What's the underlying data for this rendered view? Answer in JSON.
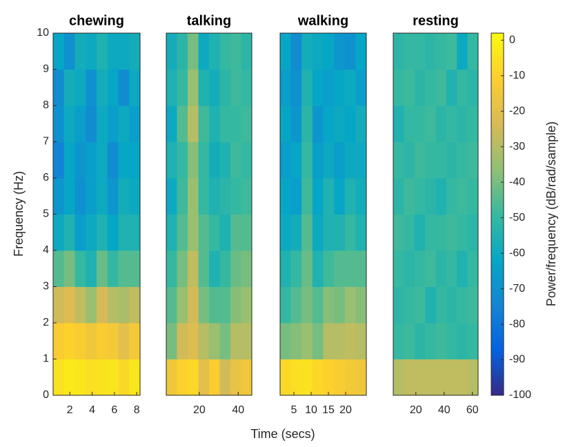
{
  "chart_data": {
    "type": "heatmap",
    "xlabel": "Time (secs)",
    "ylabel": "Frequency  (Hz)",
    "ylim": [
      0,
      10
    ],
    "yticks": [
      0,
      1,
      2,
      3,
      4,
      5,
      6,
      7,
      8,
      9,
      10
    ],
    "colormap": [
      "#352a87",
      "#0363e1",
      "#1485d4",
      "#06a7c6",
      "#38b99e",
      "#92bf73",
      "#d9ba56",
      "#fcce2e",
      "#f9fb0e"
    ],
    "colorbar": {
      "label": "Power/frequency (dB/rad/sample)",
      "zlim": [
        -100,
        2
      ],
      "ticks": [
        0,
        -10,
        -20,
        -30,
        -40,
        -50,
        -60,
        -70,
        -80,
        -90,
        -100
      ]
    },
    "panels": [
      {
        "title": "chewing",
        "xlim": [
          0.5,
          8.3
        ],
        "xticks": [
          2,
          4,
          6,
          8
        ],
        "values": [
          [
            -5,
            -3,
            -4,
            -6,
            -5,
            -4,
            -8,
            -4
          ],
          [
            -12,
            -10,
            -12,
            -15,
            -12,
            -14,
            -20,
            -14
          ],
          [
            -25,
            -22,
            -28,
            -35,
            -24,
            -30,
            -32,
            -28
          ],
          [
            -45,
            -40,
            -50,
            -55,
            -42,
            -50,
            -45,
            -45
          ],
          [
            -60,
            -55,
            -65,
            -60,
            -55,
            -62,
            -55,
            -55
          ],
          [
            -68,
            -62,
            -70,
            -65,
            -60,
            -68,
            -58,
            -60
          ],
          [
            -75,
            -62,
            -68,
            -65,
            -60,
            -72,
            -62,
            -62
          ],
          [
            -70,
            -60,
            -65,
            -72,
            -60,
            -65,
            -60,
            -65
          ],
          [
            -72,
            -58,
            -60,
            -70,
            -58,
            -62,
            -72,
            -60
          ],
          [
            -62,
            -70,
            -58,
            -60,
            -55,
            -60,
            -60,
            -58
          ]
        ]
      },
      {
        "title": "talking",
        "xlim": [
          3,
          47
        ],
        "xticks": [
          20,
          40
        ],
        "values": [
          [
            -15,
            -10,
            -8,
            -20,
            -12,
            -25,
            -18,
            -15
          ],
          [
            -40,
            -25,
            -22,
            -30,
            -35,
            -40,
            -30,
            -30
          ],
          [
            -45,
            -35,
            -25,
            -40,
            -45,
            -45,
            -38,
            -35
          ],
          [
            -50,
            -40,
            -28,
            -45,
            -55,
            -50,
            -42,
            -40
          ],
          [
            -55,
            -45,
            -35,
            -45,
            -50,
            -55,
            -45,
            -45
          ],
          [
            -60,
            -48,
            -35,
            -50,
            -55,
            -52,
            -50,
            -48
          ],
          [
            -55,
            -50,
            -38,
            -50,
            -58,
            -55,
            -48,
            -50
          ],
          [
            -60,
            -45,
            -30,
            -48,
            -55,
            -50,
            -50,
            -48
          ],
          [
            -55,
            -50,
            -35,
            -55,
            -58,
            -52,
            -48,
            -50
          ],
          [
            -58,
            -52,
            -40,
            -60,
            -55,
            -50,
            -48,
            -52
          ]
        ]
      },
      {
        "title": "walking",
        "xlim": [
          1,
          26
        ],
        "xticks": [
          5,
          10,
          15,
          20
        ],
        "values": [
          [
            -8,
            -6,
            -5,
            -8,
            -10,
            -12,
            -14,
            -15
          ],
          [
            -40,
            -38,
            -35,
            -40,
            -30,
            -30,
            -28,
            -30
          ],
          [
            -50,
            -45,
            -40,
            -45,
            -38,
            -40,
            -35,
            -38
          ],
          [
            -55,
            -50,
            -42,
            -55,
            -48,
            -45,
            -45,
            -45
          ],
          [
            -60,
            -58,
            -45,
            -60,
            -55,
            -55,
            -50,
            -55
          ],
          [
            -62,
            -65,
            -48,
            -62,
            -55,
            -62,
            -55,
            -58
          ],
          [
            -65,
            -62,
            -50,
            -65,
            -60,
            -65,
            -60,
            -60
          ],
          [
            -62,
            -68,
            -52,
            -68,
            -62,
            -60,
            -62,
            -58
          ],
          [
            -65,
            -70,
            -55,
            -62,
            -65,
            -62,
            -60,
            -65
          ],
          [
            -62,
            -72,
            -58,
            -60,
            -62,
            -68,
            -70,
            -62
          ]
        ]
      },
      {
        "title": "resting",
        "xlim": [
          4,
          64
        ],
        "xticks": [
          20,
          40,
          60
        ],
        "values": [
          [
            -30,
            -28,
            -28,
            -28,
            -28,
            -28,
            -28,
            -30
          ],
          [
            -50,
            -48,
            -52,
            -50,
            -48,
            -50,
            -52,
            -50
          ],
          [
            -52,
            -50,
            -48,
            -55,
            -50,
            -52,
            -50,
            -48
          ],
          [
            -50,
            -52,
            -50,
            -48,
            -52,
            -50,
            -55,
            -50
          ],
          [
            -48,
            -50,
            -55,
            -50,
            -50,
            -48,
            -50,
            -52
          ],
          [
            -52,
            -48,
            -50,
            -52,
            -55,
            -50,
            -48,
            -50
          ],
          [
            -50,
            -52,
            -48,
            -50,
            -50,
            -52,
            -50,
            -48
          ],
          [
            -55,
            -50,
            -50,
            -48,
            -52,
            -50,
            -52,
            -50
          ],
          [
            -50,
            -48,
            -52,
            -50,
            -48,
            -55,
            -50,
            -52
          ],
          [
            -52,
            -50,
            -50,
            -52,
            -50,
            -48,
            -60,
            -50
          ]
        ]
      }
    ]
  }
}
